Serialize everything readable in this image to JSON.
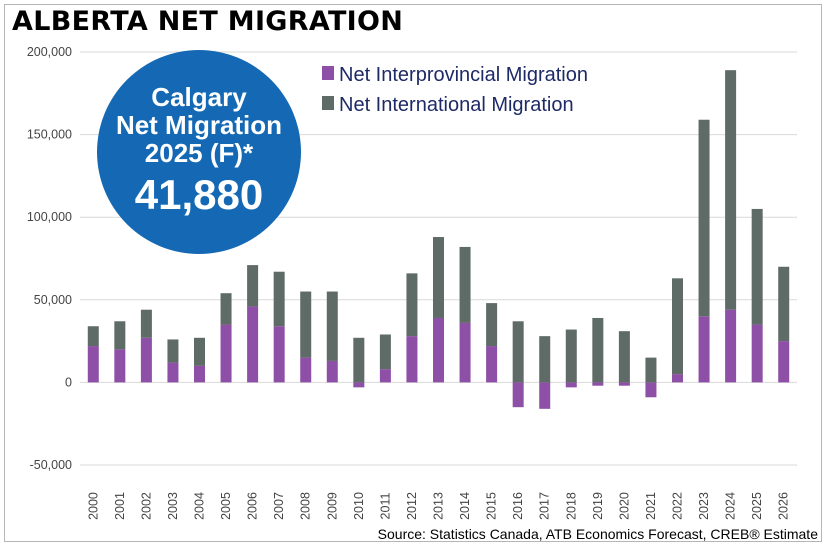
{
  "page": {
    "title": "ALBERTA NET MIGRATION",
    "source": "Source: Statistics Canada, ATB Economics Forecast, CREB® Estimate"
  },
  "callout": {
    "line1": "Calgary",
    "line2": "Net Migration",
    "line3": "2025 (F)*",
    "value": "41,880",
    "color": "#1569b4"
  },
  "chart_data": {
    "type": "bar",
    "stacked": true,
    "title": "ALBERTA NET MIGRATION",
    "xlabel": "",
    "ylabel": "",
    "ylim": [
      -50000,
      200000
    ],
    "yticks": [
      -50000,
      0,
      50000,
      100000,
      150000,
      200000
    ],
    "ytick_labels": [
      "-50,000",
      "0",
      "50,000",
      "100,000",
      "150,000",
      "200,000"
    ],
    "grid": true,
    "legend_position": "top-center",
    "categories": [
      "2000",
      "2001",
      "2002",
      "2003",
      "2004",
      "2005",
      "2006",
      "2007",
      "2008",
      "2009",
      "2010",
      "2011",
      "2012",
      "2013",
      "2014",
      "2015",
      "2016",
      "2017",
      "2018",
      "2019",
      "2020",
      "2021",
      "2022",
      "2023",
      "2024",
      "2025",
      "2026"
    ],
    "series": [
      {
        "name": "Net Interprovincial Migration",
        "color": "#8e4fa6",
        "values": [
          22000,
          20000,
          27000,
          12000,
          10000,
          35000,
          46000,
          34000,
          15000,
          13000,
          -3000,
          8000,
          28000,
          39000,
          36000,
          22000,
          -15000,
          -16000,
          -3000,
          -2000,
          -2000,
          -9000,
          5000,
          40000,
          44000,
          35000,
          25000
        ]
      },
      {
        "name": "Net International Migration",
        "color": "#5f6b67",
        "values": [
          12000,
          17000,
          17000,
          14000,
          17000,
          19000,
          25000,
          33000,
          40000,
          42000,
          27000,
          21000,
          38000,
          49000,
          46000,
          26000,
          37000,
          28000,
          32000,
          39000,
          31000,
          15000,
          58000,
          119000,
          145000,
          70000,
          45000
        ]
      }
    ]
  }
}
